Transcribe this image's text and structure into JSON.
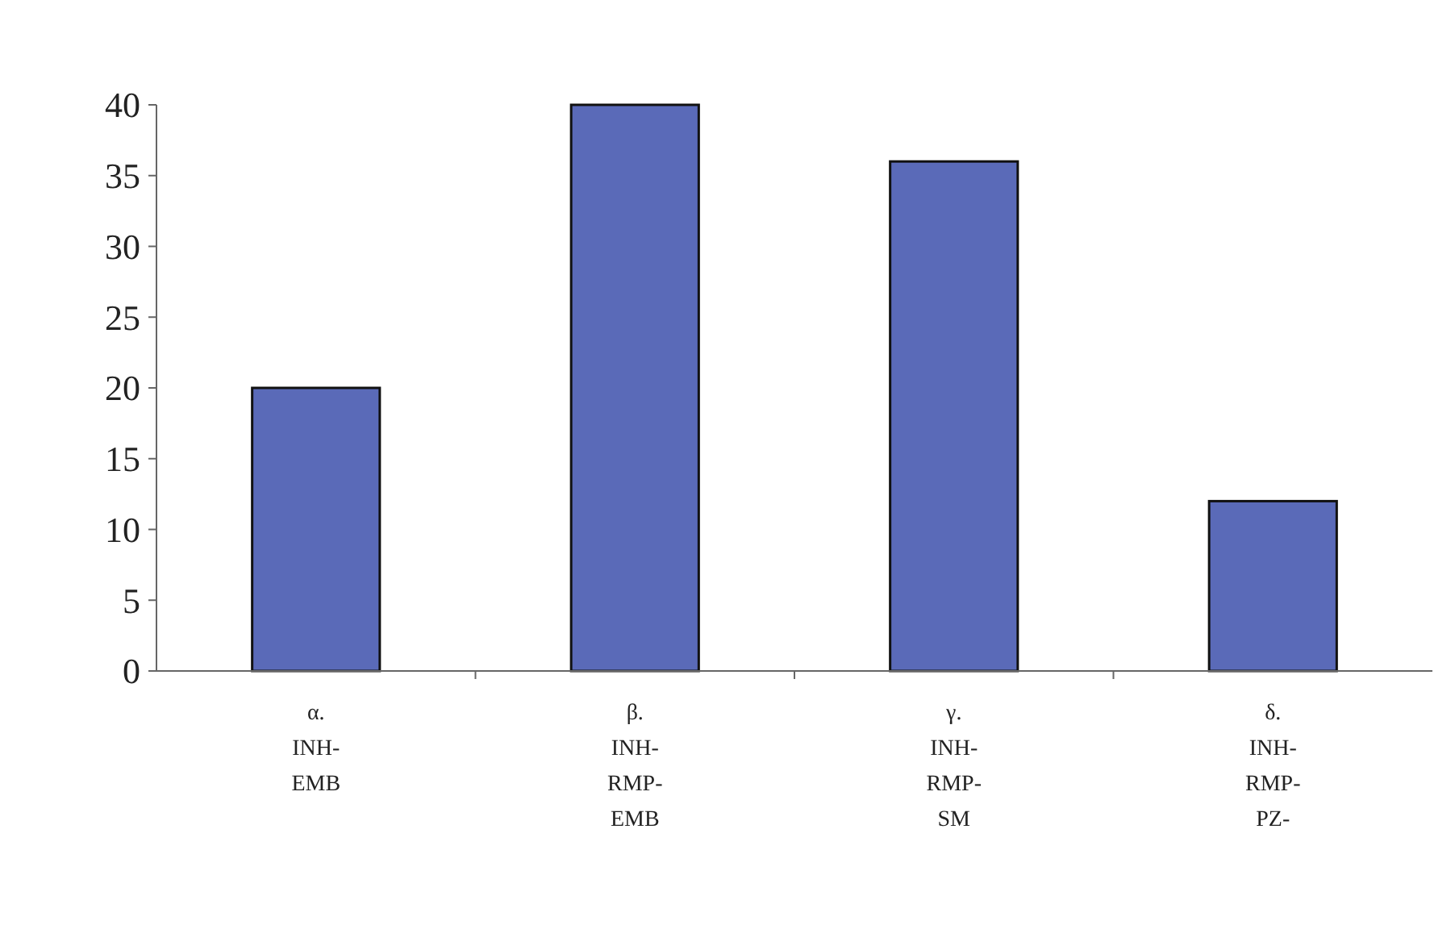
{
  "chart_data": {
    "type": "bar",
    "categories": [
      "α.\nINH-\nEMB",
      "β.\nINH-\nRMP-\nEMB",
      "γ.\nINH-\nRMP-\nSM",
      "δ.\nINH-\nRMP-\nPZ-"
    ],
    "values": [
      20,
      40,
      36,
      12
    ],
    "color": "#5a6ab8",
    "ylim": [
      0,
      40
    ],
    "yticks": [
      0,
      5,
      10,
      15,
      20,
      25,
      30,
      35,
      40
    ],
    "grid": false
  }
}
